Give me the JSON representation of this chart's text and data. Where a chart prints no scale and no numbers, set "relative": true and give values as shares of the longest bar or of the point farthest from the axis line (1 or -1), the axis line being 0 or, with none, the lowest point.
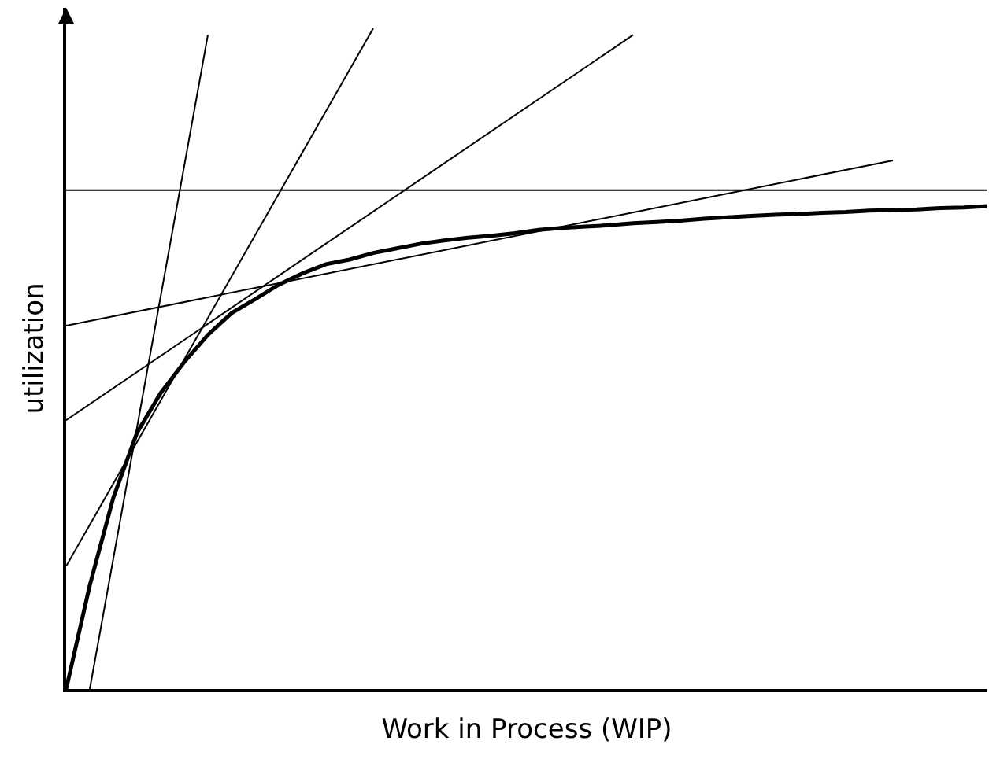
{
  "chart_data": {
    "type": "line",
    "relative": true,
    "xlabel": "Work in Process (WIP)",
    "ylabel": "utilization",
    "marker": "none",
    "line_style": "solid",
    "categories": [
      null,
      null,
      null,
      null,
      null,
      null,
      null,
      null,
      null,
      null,
      null,
      null,
      null,
      null,
      null,
      null,
      null,
      null,
      null,
      null,
      null,
      null,
      null,
      null,
      null,
      null,
      null,
      null,
      null,
      null,
      null,
      null,
      null,
      null,
      null,
      null,
      null,
      null,
      null,
      null
    ],
    "series": [
      {
        "color": "#000000",
        "values": [
          0,
          0.157,
          0.29,
          0.388,
          0.448,
          0.495,
          0.536,
          0.569,
          0.59,
          0.612,
          0.629,
          0.643,
          0.65,
          0.66,
          0.667,
          0.674,
          0.679,
          0.683,
          0.686,
          0.69,
          0.695,
          0.698,
          0.7,
          0.702,
          0.705,
          0.707,
          0.709,
          0.712,
          0.714,
          0.716,
          0.718,
          0.719,
          0.721,
          0.722,
          0.724,
          0.725,
          0.726,
          0.728,
          0.729,
          0.731
        ]
      },
      {
        "color": "#000000",
        "values": [
          null,
          0,
          null,
          null,
          null,
          null,
          0.99,
          null,
          null,
          null,
          null,
          null,
          null,
          null,
          null,
          null,
          null,
          null,
          null,
          null,
          null,
          null,
          null,
          null,
          null,
          null,
          null,
          null,
          null,
          null,
          null,
          null,
          null,
          null,
          null,
          null,
          null,
          null,
          null,
          null
        ]
      },
      {
        "color": "#000000",
        "values": [
          0.186,
          null,
          null,
          null,
          null,
          null,
          null,
          null,
          null,
          null,
          null,
          null,
          null,
          1,
          null,
          null,
          null,
          null,
          null,
          null,
          null,
          null,
          null,
          null,
          null,
          null,
          null,
          null,
          null,
          null,
          null,
          null,
          null,
          null,
          null,
          null,
          null,
          null,
          null,
          null
        ]
      },
      {
        "color": "#000000",
        "values": [
          0.407,
          null,
          null,
          null,
          null,
          null,
          null,
          null,
          null,
          null,
          null,
          null,
          null,
          null,
          null,
          null,
          null,
          null,
          null,
          null,
          null,
          null,
          null,
          null,
          0.99,
          null,
          null,
          null,
          null,
          null,
          null,
          null,
          null,
          null,
          null,
          null,
          null,
          null,
          null,
          null
        ]
      },
      {
        "color": "#000000",
        "values": [
          0.55,
          null,
          null,
          null,
          null,
          null,
          null,
          null,
          null,
          null,
          null,
          null,
          null,
          null,
          null,
          null,
          null,
          null,
          null,
          null,
          null,
          null,
          null,
          null,
          null,
          null,
          null,
          null,
          null,
          null,
          null,
          null,
          null,
          null,
          null,
          0.8,
          null,
          null,
          null,
          null
        ]
      },
      {
        "color": "#000000",
        "values": [
          0.755,
          null,
          null,
          null,
          null,
          null,
          null,
          null,
          null,
          null,
          null,
          null,
          null,
          null,
          null,
          null,
          null,
          null,
          null,
          null,
          null,
          null,
          null,
          null,
          null,
          null,
          null,
          null,
          null,
          null,
          null,
          null,
          null,
          null,
          null,
          null,
          null,
          null,
          null,
          0.755
        ]
      }
    ]
  }
}
